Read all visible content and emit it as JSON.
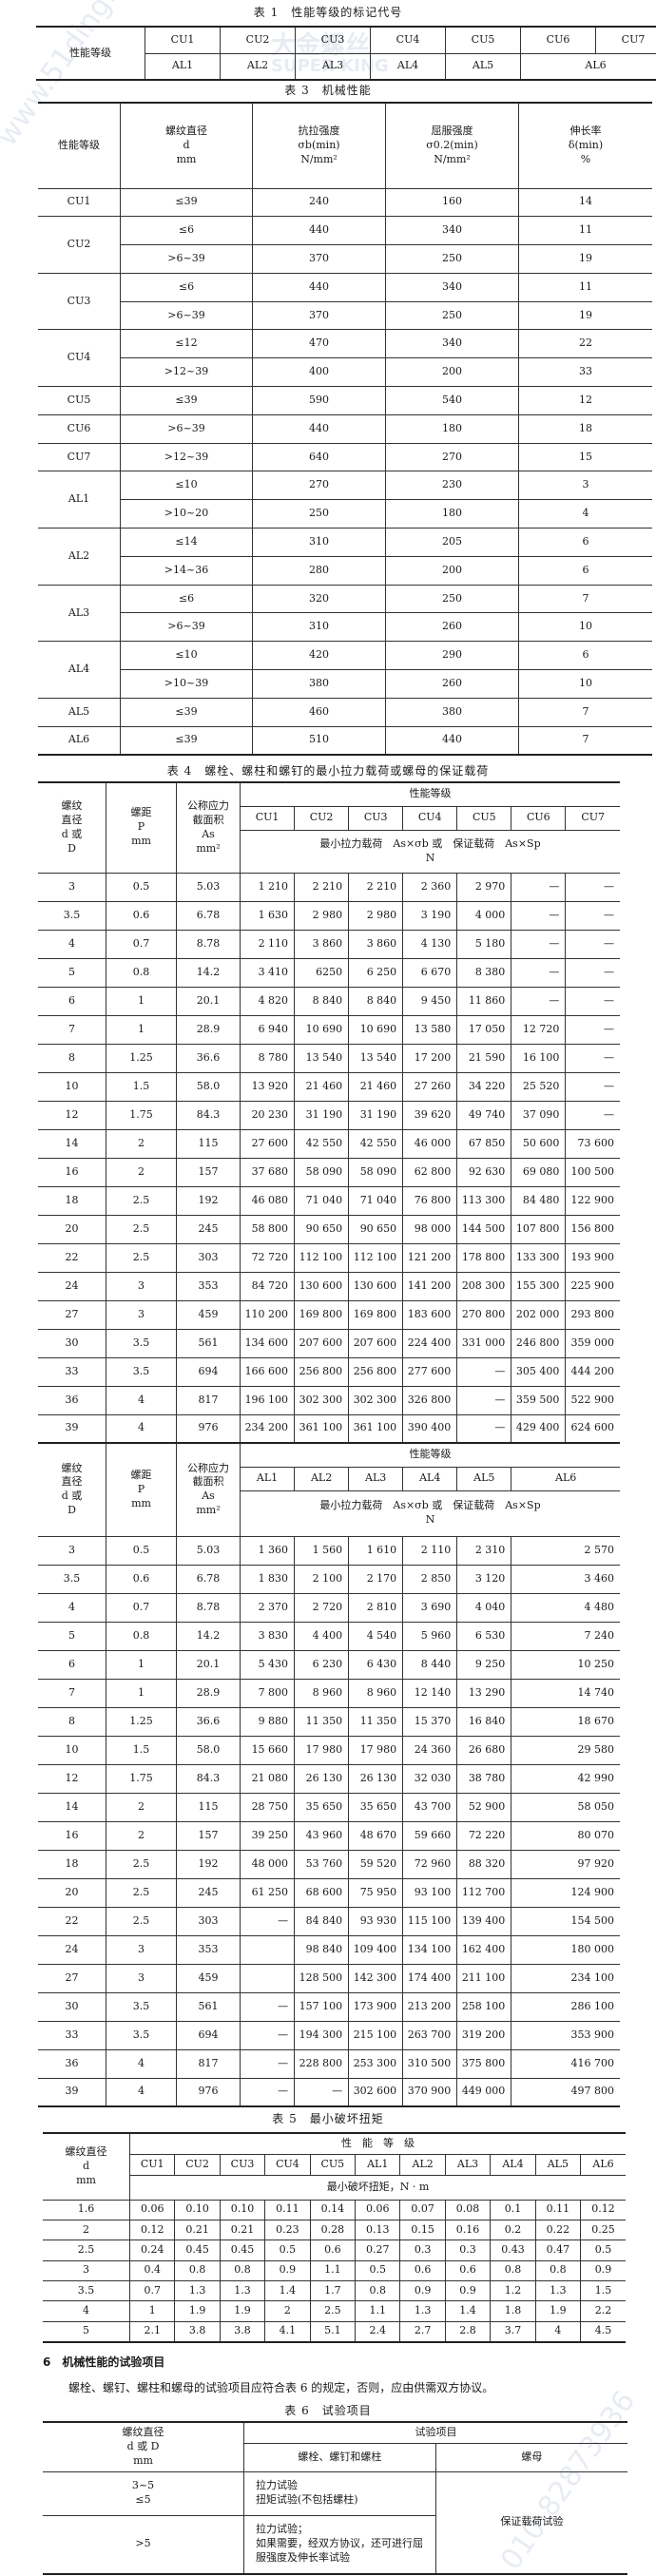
{
  "watermarks": {
    "site": "www.51ding.cn",
    "logo_cn": "大金螺丝",
    "logo_en": "SUPER KING",
    "phone": "010-82873936"
  },
  "table1": {
    "title": "表 1　性能等级的标记代号",
    "row_header": "性能等级",
    "cu": [
      "CU1",
      "CU2",
      "CU3",
      "CU4",
      "CU5",
      "CU6",
      "CU7"
    ],
    "al": [
      "AL1",
      "AL2",
      "AL3",
      "AL4",
      "AL5",
      "AL6"
    ]
  },
  "table3": {
    "title": "表 3　机械性能",
    "headers": [
      [
        "性能等级"
      ],
      [
        "螺纹直径",
        "d",
        "mm"
      ],
      [
        "抗拉强度",
        "σb(min)",
        "N/mm²"
      ],
      [
        "屈服强度",
        "σ0.2(min)",
        "N/mm²"
      ],
      [
        "伸长率",
        "δ(min)",
        "%"
      ]
    ],
    "groups": [
      {
        "grade": "CU1",
        "rows": [
          [
            "≤39",
            "240",
            "160",
            "14"
          ]
        ]
      },
      {
        "grade": "CU2",
        "rows": [
          [
            "≤6",
            "440",
            "340",
            "11"
          ],
          [
            ">6~39",
            "370",
            "250",
            "19"
          ]
        ]
      },
      {
        "grade": "CU3",
        "rows": [
          [
            "≤6",
            "440",
            "340",
            "11"
          ],
          [
            ">6~39",
            "370",
            "250",
            "19"
          ]
        ]
      },
      {
        "grade": "CU4",
        "rows": [
          [
            "≤12",
            "470",
            "340",
            "22"
          ],
          [
            ">12~39",
            "400",
            "200",
            "33"
          ]
        ]
      },
      {
        "grade": "CU5",
        "rows": [
          [
            "≤39",
            "590",
            "540",
            "12"
          ]
        ]
      },
      {
        "grade": "CU6",
        "rows": [
          [
            ">6~39",
            "440",
            "180",
            "18"
          ]
        ]
      },
      {
        "grade": "CU7",
        "rows": [
          [
            ">12~39",
            "640",
            "270",
            "15"
          ]
        ]
      },
      {
        "grade": "AL1",
        "rows": [
          [
            "≤10",
            "270",
            "230",
            "3"
          ],
          [
            ">10~20",
            "250",
            "180",
            "4"
          ]
        ]
      },
      {
        "grade": "AL2",
        "rows": [
          [
            "≤14",
            "310",
            "205",
            "6"
          ],
          [
            ">14~36",
            "280",
            "200",
            "6"
          ]
        ]
      },
      {
        "grade": "AL3",
        "rows": [
          [
            "≤6",
            "320",
            "250",
            "7"
          ],
          [
            ">6~39",
            "310",
            "260",
            "10"
          ]
        ]
      },
      {
        "grade": "AL4",
        "rows": [
          [
            "≤10",
            "420",
            "290",
            "6"
          ],
          [
            ">10~39",
            "380",
            "260",
            "10"
          ]
        ]
      },
      {
        "grade": "AL5",
        "rows": [
          [
            "≤39",
            "460",
            "380",
            "7"
          ]
        ]
      },
      {
        "grade": "AL6",
        "rows": [
          [
            "≤39",
            "510",
            "440",
            "7"
          ]
        ]
      }
    ]
  },
  "table4": {
    "title": "表 4　螺栓、螺柱和螺钉的最小拉力载荷或螺母的保证载荷",
    "h_d": [
      "螺纹",
      "直径",
      "d 或",
      "D"
    ],
    "h_p": [
      "螺距",
      "P",
      "mm"
    ],
    "h_as": [
      "公称应力",
      "截面积",
      "As",
      "mm²"
    ],
    "h_grade": "性能等级",
    "h_load": "最小拉力载荷　As×σb 或　保证载荷　As×Sp",
    "h_unit": "N",
    "part1": {
      "grades": [
        "CU1",
        "CU2",
        "CU3",
        "CU4",
        "CU5",
        "CU6",
        "CU7"
      ],
      "rows": [
        [
          "3",
          "0.5",
          "5.03",
          "1 210",
          "2 210",
          "2 210",
          "2 360",
          "2 970",
          "—",
          "—"
        ],
        [
          "3.5",
          "0.6",
          "6.78",
          "1 630",
          "2 980",
          "2 980",
          "3 190",
          "4 000",
          "—",
          "—"
        ],
        [
          "4",
          "0.7",
          "8.78",
          "2 110",
          "3 860",
          "3 860",
          "4 130",
          "5 180",
          "—",
          "—"
        ],
        [
          "5",
          "0.8",
          "14.2",
          "3 410",
          "6250",
          "6 250",
          "6 670",
          "8 380",
          "—",
          "—"
        ],
        [
          "6",
          "1",
          "20.1",
          "4 820",
          "8 840",
          "8 840",
          "9 450",
          "11 860",
          "—",
          "—"
        ],
        [
          "7",
          "1",
          "28.9",
          "6 940",
          "10 690",
          "10 690",
          "13 580",
          "17 050",
          "12 720",
          "—"
        ],
        [
          "8",
          "1.25",
          "36.6",
          "8 780",
          "13 540",
          "13 540",
          "17 200",
          "21 590",
          "16 100",
          "—"
        ],
        [
          "10",
          "1.5",
          "58.0",
          "13 920",
          "21 460",
          "21 460",
          "27 260",
          "34 220",
          "25 520",
          "—"
        ],
        [
          "12",
          "1.75",
          "84.3",
          "20 230",
          "31 190",
          "31 190",
          "39 620",
          "49 740",
          "37 090",
          "—"
        ],
        [
          "14",
          "2",
          "115",
          "27 600",
          "42 550",
          "42 550",
          "46 000",
          "67 850",
          "50 600",
          "73 600"
        ],
        [
          "16",
          "2",
          "157",
          "37 680",
          "58 090",
          "58 090",
          "62 800",
          "92 630",
          "69 080",
          "100 500"
        ],
        [
          "18",
          "2.5",
          "192",
          "46 080",
          "71 040",
          "71 040",
          "76 800",
          "113 300",
          "84 480",
          "122 900"
        ],
        [
          "20",
          "2.5",
          "245",
          "58 800",
          "90 650",
          "90 650",
          "98 000",
          "144 500",
          "107 800",
          "156 800"
        ],
        [
          "22",
          "2.5",
          "303",
          "72 720",
          "112 100",
          "112 100",
          "121 200",
          "178 800",
          "133 300",
          "193 900"
        ],
        [
          "24",
          "3",
          "353",
          "84 720",
          "130 600",
          "130 600",
          "141 200",
          "208 300",
          "155 300",
          "225 900"
        ],
        [
          "27",
          "3",
          "459",
          "110 200",
          "169 800",
          "169 800",
          "183 600",
          "270 800",
          "202 000",
          "293 800"
        ],
        [
          "30",
          "3.5",
          "561",
          "134 600",
          "207 600",
          "207 600",
          "224 400",
          "331 000",
          "246 800",
          "359 000"
        ],
        [
          "33",
          "3.5",
          "694",
          "166 600",
          "256 800",
          "256 800",
          "277 600",
          "—",
          "305 400",
          "444 200"
        ],
        [
          "36",
          "4",
          "817",
          "196 100",
          "302 300",
          "302 300",
          "326 800",
          "—",
          "359 500",
          "522 900"
        ],
        [
          "39",
          "4",
          "976",
          "234 200",
          "361 100",
          "361 100",
          "390 400",
          "—",
          "429 400",
          "624 600"
        ]
      ]
    },
    "part2": {
      "grades": [
        "AL1",
        "AL2",
        "AL3",
        "AL4",
        "AL5",
        "AL6"
      ],
      "rows": [
        [
          "3",
          "0.5",
          "5.03",
          "1 360",
          "1 560",
          "1 610",
          "2 110",
          "2 310",
          "2 570"
        ],
        [
          "3.5",
          "0.6",
          "6.78",
          "1 830",
          "2 100",
          "2 170",
          "2 850",
          "3 120",
          "3 460"
        ],
        [
          "4",
          "0.7",
          "8.78",
          "2 370",
          "2 720",
          "2 810",
          "3 690",
          "4 040",
          "4 480"
        ],
        [
          "5",
          "0.8",
          "14.2",
          "3 830",
          "4 400",
          "4 540",
          "5 960",
          "6 530",
          "7 240"
        ],
        [
          "6",
          "1",
          "20.1",
          "5 430",
          "6 230",
          "6 430",
          "8 440",
          "9 250",
          "10 250"
        ],
        [
          "7",
          "1",
          "28.9",
          "7 800",
          "8 960",
          "8 960",
          "12 140",
          "13 290",
          "14 740"
        ],
        [
          "8",
          "1.25",
          "36.6",
          "9 880",
          "11 350",
          "11 350",
          "15 370",
          "16 840",
          "18 670"
        ],
        [
          "10",
          "1.5",
          "58.0",
          "15 660",
          "17 980",
          "17 980",
          "24 360",
          "26 680",
          "29 580"
        ],
        [
          "12",
          "1.75",
          "84.3",
          "21 080",
          "26 130",
          "26 130",
          "32 030",
          "38 780",
          "42 990"
        ],
        [
          "14",
          "2",
          "115",
          "28 750",
          "35 650",
          "35 650",
          "43 700",
          "52 900",
          "58 050"
        ],
        [
          "16",
          "2",
          "157",
          "39 250",
          "43 960",
          "48 670",
          "59 660",
          "72 220",
          "80 070"
        ],
        [
          "18",
          "2.5",
          "192",
          "48 000",
          "53 760",
          "59 520",
          "72 960",
          "88 320",
          "97 920"
        ],
        [
          "20",
          "2.5",
          "245",
          "61 250",
          "68 600",
          "75 950",
          "93 100",
          "112 700",
          "124 900"
        ],
        [
          "22",
          "2.5",
          "303",
          "—",
          "84 840",
          "93 930",
          "115 100",
          "139 400",
          "154 500"
        ],
        [
          "24",
          "3",
          "353",
          "",
          "98 840",
          "109 400",
          "134 100",
          "162 400",
          "180 000"
        ],
        [
          "27",
          "3",
          "459",
          "",
          "128 500",
          "142 300",
          "174 400",
          "211 100",
          "234 100"
        ],
        [
          "30",
          "3.5",
          "561",
          "—",
          "157 100",
          "173 900",
          "213 200",
          "258 100",
          "286 100"
        ],
        [
          "33",
          "3.5",
          "694",
          "—",
          "194 300",
          "215 100",
          "263 700",
          "319 200",
          "353 900"
        ],
        [
          "36",
          "4",
          "817",
          "—",
          "228 800",
          "253 300",
          "310 500",
          "375 800",
          "416 700"
        ],
        [
          "39",
          "4",
          "976",
          "—",
          "—",
          "302 600",
          "370 900",
          "449 000",
          "497 800"
        ]
      ]
    }
  },
  "table5": {
    "title": "表 5　最小破坏扭矩",
    "h_d": [
      "螺纹直径",
      "d",
      "mm"
    ],
    "h_grade": "性　能　等　级",
    "grades": [
      "CU1",
      "CU2",
      "CU3",
      "CU4",
      "CU5",
      "AL1",
      "AL2",
      "AL3",
      "AL4",
      "AL5",
      "AL6"
    ],
    "h_torque": "最小破坏扭矩，N · m",
    "rows": [
      [
        "1.6",
        "0.06",
        "0.10",
        "0.10",
        "0.11",
        "0.14",
        "0.06",
        "0.07",
        "0.08",
        "0.1",
        "0.11",
        "0.12"
      ],
      [
        "2",
        "0.12",
        "0.21",
        "0.21",
        "0.23",
        "0.28",
        "0.13",
        "0.15",
        "0.16",
        "0.2",
        "0.22",
        "0.25"
      ],
      [
        "2.5",
        "0.24",
        "0.45",
        "0.45",
        "0.5",
        "0.6",
        "0.27",
        "0.3",
        "0.3",
        "0.43",
        "0.47",
        "0.5"
      ],
      [
        "3",
        "0.4",
        "0.8",
        "0.8",
        "0.9",
        "1.1",
        "0.5",
        "0.6",
        "0.6",
        "0.8",
        "0.8",
        "0.9"
      ],
      [
        "3.5",
        "0.7",
        "1.3",
        "1.3",
        "1.4",
        "1.7",
        "0.8",
        "0.9",
        "0.9",
        "1.2",
        "1.3",
        "1.5"
      ],
      [
        "4",
        "1",
        "1.9",
        "1.9",
        "2",
        "2.5",
        "1.1",
        "1.3",
        "1.4",
        "1.8",
        "1.9",
        "2.2"
      ],
      [
        "5",
        "2.1",
        "3.8",
        "3.8",
        "4.1",
        "5.1",
        "2.4",
        "2.7",
        "2.8",
        "3.7",
        "4",
        "4.5"
      ]
    ]
  },
  "section6": {
    "heading": "6　机械性能的试验项目",
    "paragraph": "螺栓、螺钉、螺柱和螺母的试验项目应符合表 6 的规定，否则，应由供需双方协议。"
  },
  "table6": {
    "title": "表 6　试验项目",
    "h_d": [
      "螺纹直径",
      "d 或 D",
      "mm"
    ],
    "h_items": "试验项目",
    "h_bolts": "螺栓、螺钉和螺柱",
    "h_nuts": "螺母",
    "row1": {
      "d": [
        "3~5",
        "≤5"
      ],
      "tests": [
        "拉力试验",
        "扭矩试验(不包括螺柱)"
      ]
    },
    "row2": {
      "d": [
        ">5"
      ],
      "tests": [
        "拉力试验；",
        "如果需要，经双方协议，还可进行屈服强度及伸长率试验"
      ]
    },
    "nut_test": "保证载荷试验"
  }
}
